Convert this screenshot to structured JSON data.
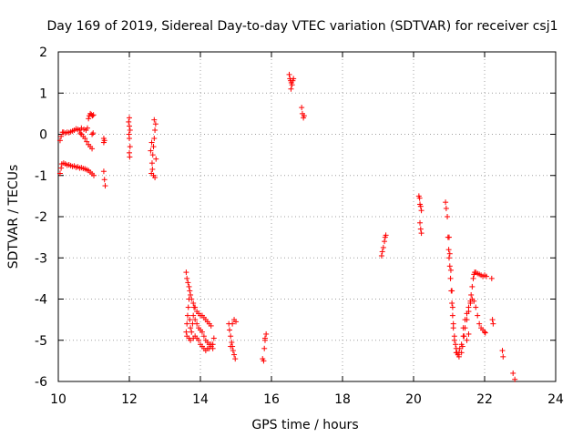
{
  "chart_data": {
    "type": "scatter",
    "title": "Day 169 of 2019, Sidereal Day-to-day VTEC variation (SDTVAR) for receiver csj1",
    "xlabel": "GPS time / hours",
    "ylabel": "SDTVAR / TECUs",
    "xlim": [
      10,
      24
    ],
    "ylim": [
      -6,
      2
    ],
    "xticks": [
      "10",
      "12",
      "14",
      "16",
      "18",
      "20",
      "22",
      "24"
    ],
    "yticks": [
      "2",
      "1",
      "0",
      "-1",
      "-2",
      "-3",
      "-4",
      "-5",
      "-6"
    ],
    "grid": true,
    "marker": "+",
    "color": "#ff0000",
    "series": [
      {
        "name": "SDTVAR",
        "points": [
          [
            10.05,
            -0.95
          ],
          [
            10.08,
            -0.82
          ],
          [
            10.1,
            -0.72
          ],
          [
            10.15,
            -0.7
          ],
          [
            10.2,
            -0.72
          ],
          [
            10.25,
            -0.75
          ],
          [
            10.3,
            -0.74
          ],
          [
            10.35,
            -0.76
          ],
          [
            10.4,
            -0.78
          ],
          [
            10.45,
            -0.77
          ],
          [
            10.5,
            -0.8
          ],
          [
            10.55,
            -0.79
          ],
          [
            10.6,
            -0.82
          ],
          [
            10.65,
            -0.81
          ],
          [
            10.7,
            -0.83
          ],
          [
            10.75,
            -0.84
          ],
          [
            10.8,
            -0.86
          ],
          [
            10.85,
            -0.88
          ],
          [
            10.9,
            -0.92
          ],
          [
            10.95,
            -0.96
          ],
          [
            11.0,
            -1.0
          ],
          [
            10.05,
            -0.15
          ],
          [
            10.08,
            -0.05
          ],
          [
            10.12,
            0.05
          ],
          [
            10.15,
            0.05
          ],
          [
            10.2,
            0.03
          ],
          [
            10.25,
            0.05
          ],
          [
            10.3,
            0.04
          ],
          [
            10.35,
            0.06
          ],
          [
            10.4,
            0.08
          ],
          [
            10.45,
            0.1
          ],
          [
            10.5,
            0.13
          ],
          [
            10.55,
            0.12
          ],
          [
            10.6,
            0.1
          ],
          [
            10.62,
            0.03
          ],
          [
            10.65,
            0.0
          ],
          [
            10.7,
            -0.05
          ],
          [
            10.75,
            -0.1
          ],
          [
            10.8,
            -0.18
          ],
          [
            10.85,
            -0.25
          ],
          [
            10.9,
            -0.3
          ],
          [
            10.95,
            -0.35
          ],
          [
            10.65,
            0.15
          ],
          [
            10.72,
            0.12
          ],
          [
            10.78,
            0.1
          ],
          [
            10.82,
            0.15
          ],
          [
            10.85,
            0.38
          ],
          [
            10.87,
            0.45
          ],
          [
            10.9,
            0.5
          ],
          [
            10.93,
            0.48
          ],
          [
            10.96,
            0.45
          ],
          [
            10.99,
            0.47
          ],
          [
            10.95,
            0.0
          ],
          [
            10.98,
            0.03
          ],
          [
            11.28,
            -0.1
          ],
          [
            11.28,
            -0.2
          ],
          [
            11.3,
            -0.15
          ],
          [
            11.28,
            -0.9
          ],
          [
            11.3,
            -1.1
          ],
          [
            11.32,
            -1.25
          ],
          [
            11.98,
            0.3
          ],
          [
            12.0,
            0.4
          ],
          [
            12.0,
            0.2
          ],
          [
            11.99,
            0.0
          ],
          [
            12.0,
            -0.1
          ],
          [
            12.02,
            -0.3
          ],
          [
            12.0,
            -0.45
          ],
          [
            12.01,
            -0.55
          ],
          [
            12.02,
            0.1
          ],
          [
            12.62,
            -0.95
          ],
          [
            12.64,
            -0.7
          ],
          [
            12.66,
            -0.5
          ],
          [
            12.68,
            -0.3
          ],
          [
            12.7,
            -0.1
          ],
          [
            12.72,
            0.1
          ],
          [
            12.74,
            0.25
          ],
          [
            12.7,
            0.35
          ],
          [
            12.65,
            -0.85
          ],
          [
            12.68,
            -1.0
          ],
          [
            12.72,
            -1.05
          ],
          [
            12.75,
            -0.6
          ],
          [
            12.6,
            -0.4
          ],
          [
            12.63,
            -0.2
          ],
          [
            13.6,
            -3.35
          ],
          [
            13.62,
            -3.5
          ],
          [
            13.65,
            -3.6
          ],
          [
            13.68,
            -3.7
          ],
          [
            13.7,
            -3.8
          ],
          [
            13.72,
            -3.9
          ],
          [
            13.75,
            -4.0
          ],
          [
            13.8,
            -4.1
          ],
          [
            13.85,
            -4.2
          ],
          [
            13.9,
            -4.3
          ],
          [
            13.95,
            -4.35
          ],
          [
            14.0,
            -4.4
          ],
          [
            14.05,
            -4.4
          ],
          [
            14.1,
            -4.45
          ],
          [
            14.15,
            -4.5
          ],
          [
            14.2,
            -4.55
          ],
          [
            14.25,
            -4.6
          ],
          [
            14.3,
            -4.65
          ],
          [
            13.6,
            -4.8
          ],
          [
            13.62,
            -4.6
          ],
          [
            13.64,
            -4.4
          ],
          [
            13.66,
            -4.2
          ],
          [
            13.68,
            -4.0
          ],
          [
            13.7,
            -4.5
          ],
          [
            13.72,
            -4.7
          ],
          [
            13.75,
            -4.8
          ],
          [
            13.78,
            -4.6
          ],
          [
            13.8,
            -4.4
          ],
          [
            13.82,
            -4.2
          ],
          [
            13.85,
            -4.5
          ],
          [
            13.9,
            -4.6
          ],
          [
            13.95,
            -4.7
          ],
          [
            14.0,
            -4.75
          ],
          [
            14.05,
            -4.8
          ],
          [
            14.1,
            -4.9
          ],
          [
            14.15,
            -5.0
          ],
          [
            14.2,
            -5.05
          ],
          [
            14.25,
            -5.1
          ],
          [
            14.3,
            -5.15
          ],
          [
            14.35,
            -5.1
          ],
          [
            13.62,
            -4.9
          ],
          [
            13.68,
            -4.95
          ],
          [
            13.72,
            -5.0
          ],
          [
            13.8,
            -4.95
          ],
          [
            13.85,
            -4.9
          ],
          [
            13.9,
            -4.95
          ],
          [
            13.95,
            -5.0
          ],
          [
            14.0,
            -5.1
          ],
          [
            14.05,
            -5.15
          ],
          [
            14.1,
            -5.2
          ],
          [
            14.15,
            -5.25
          ],
          [
            14.2,
            -5.2
          ],
          [
            14.25,
            -5.2
          ],
          [
            14.3,
            -5.1
          ],
          [
            14.35,
            -5.2
          ],
          [
            14.38,
            -4.95
          ],
          [
            14.8,
            -4.6
          ],
          [
            14.82,
            -4.75
          ],
          [
            14.85,
            -4.9
          ],
          [
            14.88,
            -5.05
          ],
          [
            14.9,
            -5.15
          ],
          [
            14.92,
            -5.25
          ],
          [
            14.95,
            -5.35
          ],
          [
            14.98,
            -5.45
          ],
          [
            14.85,
            -5.15
          ],
          [
            14.9,
            -4.6
          ],
          [
            14.95,
            -4.5
          ],
          [
            15.0,
            -4.55
          ],
          [
            15.75,
            -5.45
          ],
          [
            15.78,
            -5.5
          ],
          [
            15.8,
            -5.2
          ],
          [
            15.82,
            -5.0
          ],
          [
            15.85,
            -4.85
          ],
          [
            15.82,
            -4.95
          ],
          [
            16.5,
            1.45
          ],
          [
            16.52,
            1.35
          ],
          [
            16.54,
            1.3
          ],
          [
            16.56,
            1.25
          ],
          [
            16.58,
            1.2
          ],
          [
            16.6,
            1.3
          ],
          [
            16.62,
            1.35
          ],
          [
            16.55,
            1.1
          ],
          [
            16.85,
            0.65
          ],
          [
            16.87,
            0.5
          ],
          [
            16.9,
            0.4
          ],
          [
            16.92,
            0.45
          ],
          [
            19.1,
            -2.95
          ],
          [
            19.12,
            -2.85
          ],
          [
            19.15,
            -2.75
          ],
          [
            19.18,
            -2.6
          ],
          [
            19.2,
            -2.5
          ],
          [
            19.22,
            -2.45
          ],
          [
            20.15,
            -1.5
          ],
          [
            20.17,
            -1.55
          ],
          [
            20.18,
            -1.7
          ],
          [
            20.2,
            -1.75
          ],
          [
            20.22,
            -1.85
          ],
          [
            20.18,
            -2.15
          ],
          [
            20.2,
            -2.3
          ],
          [
            20.22,
            -2.4
          ],
          [
            20.9,
            -1.65
          ],
          [
            20.92,
            -1.8
          ],
          [
            20.95,
            -2.0
          ],
          [
            20.97,
            -2.5
          ],
          [
            20.99,
            -2.8
          ],
          [
            21.0,
            -3.0
          ],
          [
            21.02,
            -3.2
          ],
          [
            21.04,
            -3.5
          ],
          [
            21.06,
            -3.8
          ],
          [
            21.08,
            -4.1
          ],
          [
            21.1,
            -4.4
          ],
          [
            21.12,
            -4.7
          ],
          [
            21.15,
            -4.9
          ],
          [
            21.18,
            -5.1
          ],
          [
            21.2,
            -5.2
          ],
          [
            21.22,
            -5.3
          ],
          [
            21.25,
            -5.35
          ],
          [
            21.28,
            -5.3
          ],
          [
            21.3,
            -5.2
          ],
          [
            21.0,
            -2.5
          ],
          [
            21.02,
            -2.9
          ],
          [
            21.05,
            -3.3
          ],
          [
            21.08,
            -3.8
          ],
          [
            21.1,
            -4.2
          ],
          [
            21.12,
            -4.6
          ],
          [
            21.15,
            -5.0
          ],
          [
            21.2,
            -5.3
          ],
          [
            21.35,
            -5.1
          ],
          [
            21.4,
            -4.9
          ],
          [
            21.45,
            -4.7
          ],
          [
            21.5,
            -4.5
          ],
          [
            21.55,
            -4.3
          ],
          [
            21.6,
            -4.1
          ],
          [
            21.62,
            -3.9
          ],
          [
            21.65,
            -3.7
          ],
          [
            21.68,
            -3.5
          ],
          [
            21.7,
            -3.4
          ],
          [
            21.72,
            -3.35
          ],
          [
            21.75,
            -3.35
          ],
          [
            21.8,
            -3.38
          ],
          [
            21.85,
            -3.4
          ],
          [
            21.9,
            -3.42
          ],
          [
            21.95,
            -3.45
          ],
          [
            22.0,
            -3.42
          ],
          [
            22.05,
            -3.45
          ],
          [
            21.45,
            -4.5
          ],
          [
            21.5,
            -4.35
          ],
          [
            21.55,
            -4.2
          ],
          [
            21.6,
            -4.05
          ],
          [
            21.65,
            -4.0
          ],
          [
            21.7,
            -4.05
          ],
          [
            21.75,
            -4.2
          ],
          [
            21.8,
            -4.4
          ],
          [
            21.85,
            -4.6
          ],
          [
            21.9,
            -4.7
          ],
          [
            21.95,
            -4.75
          ],
          [
            22.0,
            -4.8
          ],
          [
            22.02,
            -4.82
          ],
          [
            21.4,
            -4.7
          ],
          [
            21.42,
            -4.9
          ],
          [
            21.38,
            -5.15
          ],
          [
            21.5,
            -5.0
          ],
          [
            21.55,
            -4.85
          ],
          [
            21.35,
            -5.3
          ],
          [
            21.28,
            -5.4
          ],
          [
            22.2,
            -3.5
          ],
          [
            22.22,
            -4.5
          ],
          [
            22.24,
            -4.6
          ],
          [
            22.5,
            -5.25
          ],
          [
            22.52,
            -5.4
          ],
          [
            22.8,
            -5.8
          ],
          [
            22.85,
            -5.95
          ]
        ]
      }
    ]
  }
}
